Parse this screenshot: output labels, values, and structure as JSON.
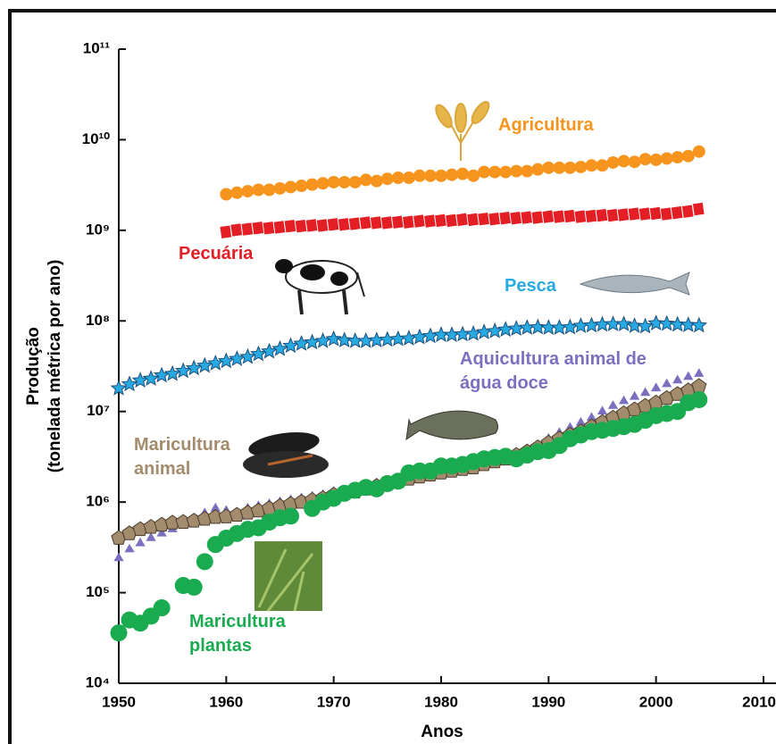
{
  "chart_data": {
    "type": "scatter",
    "x_label": "Anos",
    "y_label": [
      "Produção",
      "(tonelada métrica por ano)"
    ],
    "log_y": true,
    "xlim": [
      1950,
      2010
    ],
    "xticks": [
      1950,
      1960,
      1970,
      1980,
      1990,
      2000,
      2010
    ],
    "ylim": [
      10000,
      100000000000
    ],
    "yticks": [
      {
        "value": 10000,
        "label": "10⁴"
      },
      {
        "value": 100000,
        "label": "10⁵"
      },
      {
        "value": 1000000,
        "label": "10⁶"
      },
      {
        "value": 10000000,
        "label": "10⁷"
      },
      {
        "value": 100000000,
        "label": "10⁸"
      },
      {
        "value": 1000000000,
        "label": "10⁹"
      },
      {
        "value": 10000000000,
        "label": "10¹⁰"
      },
      {
        "value": 100000000000,
        "label": "10¹¹"
      }
    ],
    "x": [
      1950,
      1951,
      1952,
      1953,
      1954,
      1955,
      1956,
      1957,
      1958,
      1959,
      1960,
      1961,
      1962,
      1963,
      1964,
      1965,
      1966,
      1967,
      1968,
      1969,
      1970,
      1971,
      1972,
      1973,
      1974,
      1975,
      1976,
      1977,
      1978,
      1979,
      1980,
      1981,
      1982,
      1983,
      1984,
      1985,
      1986,
      1987,
      1988,
      1989,
      1990,
      1991,
      1992,
      1993,
      1994,
      1995,
      1996,
      1997,
      1998,
      1999,
      2000,
      2001,
      2002,
      2003,
      2004
    ],
    "series": [
      {
        "name": "Agricultura",
        "color": "#f7941d",
        "marker": "circle",
        "values": [
          null,
          null,
          null,
          null,
          null,
          null,
          null,
          null,
          null,
          null,
          2500000000,
          2600000000,
          2700000000,
          2800000000,
          2800000000,
          2900000000,
          3000000000,
          3100000000,
          3200000000,
          3300000000,
          3400000000,
          3400000000,
          3400000000,
          3600000000,
          3500000000,
          3700000000,
          3800000000,
          3800000000,
          4000000000,
          4000000000,
          4000000000,
          4100000000,
          4200000000,
          4000000000,
          4400000000,
          4400000000,
          4400000000,
          4500000000,
          4500000000,
          4700000000,
          4900000000,
          4900000000,
          4900000000,
          5000000000,
          5200000000,
          5200000000,
          5600000000,
          5800000000,
          5700000000,
          6100000000,
          6000000000,
          6200000000,
          6400000000,
          6600000000,
          7400000000
        ]
      },
      {
        "name": "Pecuária",
        "color": "#e31e24",
        "marker": "square",
        "values": [
          null,
          null,
          null,
          null,
          null,
          null,
          null,
          null,
          null,
          null,
          950000000,
          1000000000,
          1020000000,
          1050000000,
          1050000000,
          1070000000,
          1100000000,
          1100000000,
          1120000000,
          1120000000,
          1150000000,
          1150000000,
          1170000000,
          1200000000,
          1200000000,
          1200000000,
          1220000000,
          1220000000,
          1250000000,
          1250000000,
          1270000000,
          1270000000,
          1300000000,
          1300000000,
          1320000000,
          1320000000,
          1350000000,
          1350000000,
          1370000000,
          1370000000,
          1400000000,
          1400000000,
          1420000000,
          1400000000,
          1420000000,
          1450000000,
          1450000000,
          1470000000,
          1500000000,
          1500000000,
          1520000000,
          1500000000,
          1550000000,
          1600000000,
          1700000000
        ]
      },
      {
        "name": "Pesca",
        "color": "#27a9e1",
        "marker": "star",
        "values": [
          18000000,
          20000000,
          22000000,
          23000000,
          25000000,
          26000000,
          28000000,
          30000000,
          32000000,
          34000000,
          36000000,
          38000000,
          40000000,
          43000000,
          46000000,
          49000000,
          53000000,
          56000000,
          58000000,
          60000000,
          63000000,
          61000000,
          60000000,
          60000000,
          61000000,
          62000000,
          63000000,
          64000000,
          66000000,
          68000000,
          70000000,
          70000000,
          71000000,
          72000000,
          75000000,
          77000000,
          80000000,
          82000000,
          84000000,
          85000000,
          84000000,
          84000000,
          85000000,
          88000000,
          89000000,
          91000000,
          92000000,
          92000000,
          88000000,
          87000000,
          94000000,
          93000000,
          91000000,
          90000000,
          89000000
        ]
      },
      {
        "name": "Aquicultura animal de água doce",
        "color": "#7b6fc0",
        "marker": "triangle",
        "values": [
          240000,
          300000,
          350000,
          400000,
          450000,
          500000,
          550000,
          650000,
          750000,
          850000,
          800000,
          750000,
          850000,
          900000,
          950000,
          1000000,
          1050000,
          1100000,
          1150000,
          1200000,
          1300000,
          1350000,
          1400000,
          1450000,
          1500000,
          1550000,
          1600000,
          1700000,
          1800000,
          1900000,
          2000000,
          2100000,
          2200000,
          2300000,
          2400000,
          2600000,
          2900000,
          3200000,
          3600000,
          4200000,
          5000000,
          5800000,
          6600000,
          7500000,
          8500000,
          10000000,
          11500000,
          13000000,
          14500000,
          16000000,
          18000000,
          20000000,
          22000000,
          24000000,
          26000000
        ]
      },
      {
        "name": "Maricultura animal",
        "color": "#a38b6d",
        "marker": "pentagon",
        "values": [
          400000,
          450000,
          500000,
          530000,
          560000,
          590000,
          600000,
          620000,
          650000,
          680000,
          690000,
          720000,
          760000,
          800000,
          850000,
          900000,
          950000,
          1000000,
          1050000,
          1100000,
          1200000,
          1250000,
          1300000,
          1400000,
          1500000,
          1600000,
          1700000,
          1800000,
          1900000,
          2000000,
          2100000,
          2200000,
          2300000,
          2400000,
          2600000,
          2800000,
          3000000,
          3300000,
          3600000,
          4000000,
          4500000,
          5000000,
          5500000,
          6000000,
          6800000,
          7600000,
          8500000,
          9500000,
          10500000,
          11500000,
          12500000,
          14000000,
          15500000,
          17000000,
          19000000
        ]
      },
      {
        "name": "Maricultura plantas",
        "color": "#1aab50",
        "marker": "bigcircle",
        "values": [
          36000,
          50000,
          46000,
          55000,
          68000,
          null,
          120000,
          115000,
          220000,
          340000,
          400000,
          450000,
          500000,
          520000,
          600000,
          670000,
          700000,
          null,
          850000,
          1000000,
          1100000,
          1250000,
          1350000,
          1450000,
          1400000,
          1600000,
          1700000,
          2100000,
          2200000,
          2200000,
          2500000,
          2500000,
          2600000,
          2800000,
          3000000,
          3100000,
          3200000,
          3000000,
          3300000,
          3600000,
          3700000,
          4200000,
          5000000,
          5500000,
          6000000,
          6200000,
          6500000,
          6800000,
          7200000,
          8000000,
          9000000,
          9500000,
          10000000,
          12500000,
          13500000
        ]
      }
    ]
  }
}
